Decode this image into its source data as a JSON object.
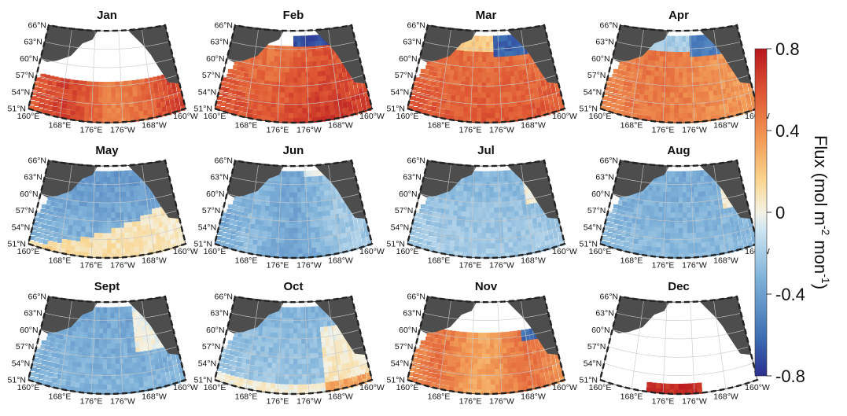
{
  "colors": {
    "land": "#4d4d4d",
    "grid": "#c8c8c8",
    "frame": "#222222",
    "colormap": [
      "#2b2f8f",
      "#3d6fb4",
      "#7fb2d9",
      "#cfe6f2",
      "#f4f2e4",
      "#f9d48d",
      "#f29c57",
      "#e05a34",
      "#b8161f"
    ]
  },
  "colorbar": {
    "label_main": "Flux (mol m",
    "label_sup1": "-2",
    "label_mid": " mon",
    "label_sup2": "-1",
    "label_end": ")",
    "ticks": [
      {
        "value": 0.8,
        "label": "0.8"
      },
      {
        "value": 0.4,
        "label": "0.4"
      },
      {
        "value": 0,
        "label": "0"
      },
      {
        "value": -0.4,
        "label": "-0.4"
      },
      {
        "value": -0.8,
        "label": "-0.8"
      }
    ],
    "range": [
      -0.8,
      0.8
    ]
  },
  "axes": {
    "lat_labels": [
      "66°N",
      "63°N",
      "60°N",
      "57°N",
      "54°N",
      "51°N"
    ],
    "lon_labels": [
      "160°E",
      "168°E",
      "176°E",
      "176°W",
      "168°W",
      "160°W"
    ]
  },
  "panels": [
    {
      "month": "Jan",
      "pattern": "jan"
    },
    {
      "month": "Feb",
      "pattern": "feb"
    },
    {
      "month": "Mar",
      "pattern": "mar"
    },
    {
      "month": "Apr",
      "pattern": "apr"
    },
    {
      "month": "May",
      "pattern": "may"
    },
    {
      "month": "Jun",
      "pattern": "jun"
    },
    {
      "month": "Jul",
      "pattern": "jul"
    },
    {
      "month": "Aug",
      "pattern": "aug"
    },
    {
      "month": "Sept",
      "pattern": "sep"
    },
    {
      "month": "Oct",
      "pattern": "oct"
    },
    {
      "month": "Nov",
      "pattern": "nov"
    },
    {
      "month": "Dec",
      "pattern": "dec"
    }
  ]
}
